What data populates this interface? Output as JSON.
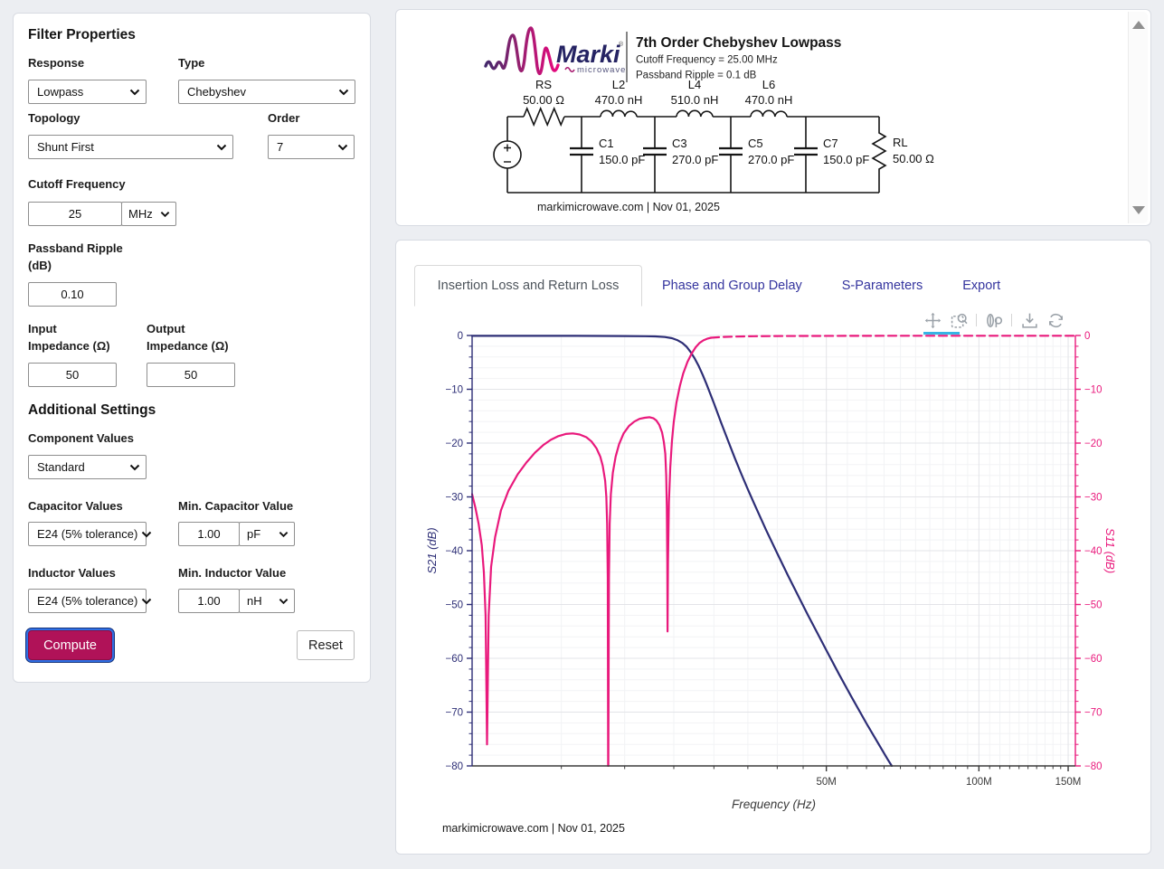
{
  "left_panel": {
    "title": "Filter Properties",
    "response": {
      "label": "Response",
      "value": "Lowpass"
    },
    "type": {
      "label": "Type",
      "value": "Chebyshev"
    },
    "topology": {
      "label": "Topology",
      "value": "Shunt First"
    },
    "order": {
      "label": "Order",
      "value": "7"
    },
    "cutoff_frequency": {
      "label": "Cutoff Frequency",
      "value": "25",
      "unit": "MHz"
    },
    "passband_ripple": {
      "label_line1": "Passband Ripple",
      "label_line2": "(dB)",
      "value": "0.10"
    },
    "input_impedance": {
      "label_line1": "Input",
      "label_line2": "Impedance (Ω)",
      "value": "50"
    },
    "output_impedance": {
      "label_line1": "Output",
      "label_line2": "Impedance (Ω)",
      "value": "50"
    },
    "additional_settings": {
      "title": "Additional Settings",
      "component_values": {
        "label": "Component Values",
        "value": "Standard"
      },
      "capacitor_values": {
        "label": "Capacitor Values",
        "value": "E24 (5% tolerance)"
      },
      "min_capacitor": {
        "label": "Min. Capacitor Value",
        "value": "1.00",
        "unit": "pF"
      },
      "inductor_values": {
        "label": "Inductor Values",
        "value": "E24 (5% tolerance)"
      },
      "min_inductor": {
        "label": "Min. Inductor Value",
        "value": "1.00",
        "unit": "nH"
      }
    },
    "compute_label": "Compute",
    "reset_label": "Reset"
  },
  "schematic": {
    "logo": {
      "brand": "Marki",
      "subbrand": "microwave"
    },
    "title": "7th Order Chebyshev Lowpass",
    "subtitle_line1": "Cutoff Frequency = 25.00 MHz",
    "subtitle_line2": "Passband Ripple = 0.1 dB",
    "components": {
      "rs": {
        "name": "RS",
        "value": "50.00 Ω"
      },
      "l2": {
        "name": "L2",
        "value": "470.0 nH"
      },
      "l4": {
        "name": "L4",
        "value": "510.0 nH"
      },
      "l6": {
        "name": "L6",
        "value": "470.0 nH"
      },
      "c1": {
        "name": "C1",
        "value": "150.0 pF"
      },
      "c3": {
        "name": "C3",
        "value": "270.0 pF"
      },
      "c5": {
        "name": "C5",
        "value": "270.0 pF"
      },
      "c7": {
        "name": "C7",
        "value": "150.0 pF"
      },
      "rl": {
        "name": "RL",
        "value": "50.00 Ω"
      }
    },
    "footer": "markimicrowave.com | Nov 01, 2025"
  },
  "results_panel": {
    "tabs": [
      {
        "label": "Insertion Loss and Return Loss",
        "active": true
      },
      {
        "label": "Phase and Group Delay",
        "active": false
      },
      {
        "label": "S-Parameters",
        "active": false
      },
      {
        "label": "Export",
        "active": false
      }
    ],
    "toolbar": {
      "tools": [
        "pan",
        "box-zoom",
        "hover",
        "save",
        "reset"
      ],
      "active_tool": "pan"
    },
    "footer": "markimicrowave.com | Nov 01, 2025"
  },
  "chart_data": {
    "type": "line",
    "title": "",
    "xlabel": "Frequency (Hz)",
    "x_scale": "log",
    "x_range_hz": [
      10000000,
      155000000
    ],
    "x_major_ticks": [
      {
        "value_hz": 50000000,
        "label": "50M"
      },
      {
        "value_hz": 100000000,
        "label": "100M"
      },
      {
        "value_hz": 150000000,
        "label": "150M"
      }
    ],
    "x_minor_step_hz": 5000000,
    "y_left_axis": {
      "label": "S21 (dB)",
      "range": [
        -80,
        0
      ],
      "major_step": 10,
      "minor_step": 2,
      "color": "#2D2E76"
    },
    "y_right_axis": {
      "label": "S11 (dB)",
      "range": [
        -80,
        0
      ],
      "major_step": 10,
      "minor_step": 2,
      "color": "#E9197C"
    },
    "grid": true,
    "legend": "none",
    "series": [
      {
        "name": "S21",
        "axis": "left",
        "color": "#2D2E76",
        "line_style": "solid",
        "points_mhz_db": [
          [
            10,
            -0.07
          ],
          [
            12,
            -0.07
          ],
          [
            14,
            -0.07
          ],
          [
            16,
            -0.07
          ],
          [
            18,
            -0.08
          ],
          [
            20,
            -0.1
          ],
          [
            22,
            -0.13
          ],
          [
            23,
            -0.17
          ],
          [
            24,
            -0.28
          ],
          [
            24.8,
            -0.5
          ],
          [
            25.4,
            -0.85
          ],
          [
            26,
            -1.4
          ],
          [
            26.5,
            -2.1
          ],
          [
            27,
            -3.1
          ],
          [
            27.5,
            -4.3
          ],
          [
            28,
            -5.7
          ],
          [
            28.5,
            -7.3
          ],
          [
            29,
            -9.0
          ],
          [
            30,
            -12.6
          ],
          [
            31,
            -16.2
          ],
          [
            32,
            -19.6
          ],
          [
            33,
            -22.8
          ],
          [
            34,
            -25.8
          ],
          [
            35,
            -28.6
          ],
          [
            36,
            -31.2
          ],
          [
            38,
            -36.1
          ],
          [
            40,
            -40.5
          ],
          [
            42,
            -44.6
          ],
          [
            44,
            -48.4
          ],
          [
            46,
            -52.0
          ],
          [
            48,
            -55.3
          ],
          [
            50,
            -58.5
          ],
          [
            53,
            -63.0
          ],
          [
            56,
            -67.1
          ],
          [
            60,
            -72.1
          ],
          [
            63,
            -75.5
          ],
          [
            66,
            -78.7
          ],
          [
            67.3,
            -80.0
          ]
        ]
      },
      {
        "name": "S11",
        "axis": "right",
        "color": "#E9197C",
        "line_style": "solid",
        "points_mhz_db": [
          [
            10,
            -29.5
          ],
          [
            10.15,
            -32
          ],
          [
            10.3,
            -35
          ],
          [
            10.45,
            -39
          ],
          [
            10.55,
            -44
          ],
          [
            10.63,
            -52
          ],
          [
            10.7,
            -76
          ],
          [
            10.78,
            -52
          ],
          [
            10.9,
            -43
          ],
          [
            11.1,
            -37.5
          ],
          [
            11.4,
            -32.5
          ],
          [
            11.8,
            -28.8
          ],
          [
            12.3,
            -25.8
          ],
          [
            12.8,
            -23.6
          ],
          [
            13.3,
            -21.8
          ],
          [
            13.8,
            -20.4
          ],
          [
            14.3,
            -19.4
          ],
          [
            14.8,
            -18.7
          ],
          [
            15.3,
            -18.3
          ],
          [
            15.8,
            -18.2
          ],
          [
            16.3,
            -18.4
          ],
          [
            16.8,
            -18.9
          ],
          [
            17.2,
            -19.7
          ],
          [
            17.6,
            -21.0
          ],
          [
            17.9,
            -22.5
          ],
          [
            18.1,
            -24.2
          ],
          [
            18.3,
            -27.0
          ],
          [
            18.4,
            -30.0
          ],
          [
            18.47,
            -35.0
          ],
          [
            18.52,
            -45.0
          ],
          [
            18.55,
            -80.0
          ],
          [
            18.57,
            -80.0
          ],
          [
            18.62,
            -45.0
          ],
          [
            18.68,
            -35.0
          ],
          [
            18.78,
            -29.5
          ],
          [
            18.95,
            -25.5
          ],
          [
            19.2,
            -22.5
          ],
          [
            19.5,
            -20.2
          ],
          [
            19.9,
            -18.2
          ],
          [
            20.4,
            -16.8
          ],
          [
            20.9,
            -16.0
          ],
          [
            21.4,
            -15.5
          ],
          [
            21.9,
            -15.3
          ],
          [
            22.4,
            -15.2
          ],
          [
            22.8,
            -15.4
          ],
          [
            23.1,
            -15.8
          ],
          [
            23.4,
            -16.6
          ],
          [
            23.7,
            -18.0
          ],
          [
            23.9,
            -19.8
          ],
          [
            24.05,
            -22.0
          ],
          [
            24.15,
            -26.0
          ],
          [
            24.22,
            -32.0
          ],
          [
            24.27,
            -42.0
          ],
          [
            24.3,
            -55.0
          ],
          [
            24.35,
            -42.0
          ],
          [
            24.45,
            -31.0
          ],
          [
            24.6,
            -24.5
          ],
          [
            24.8,
            -19.5
          ],
          [
            25,
            -16.0
          ],
          [
            25.3,
            -12.5
          ],
          [
            25.7,
            -9.4
          ],
          [
            26.1,
            -7.0
          ],
          [
            26.6,
            -4.9
          ],
          [
            27.1,
            -3.4
          ],
          [
            27.6,
            -2.2
          ],
          [
            28.1,
            -1.4
          ],
          [
            28.6,
            -0.9
          ],
          [
            29.1,
            -0.6
          ],
          [
            29.6,
            -0.42
          ]
        ]
      },
      {
        "name": "S11_stopband",
        "axis": "right",
        "color": "#E9197C",
        "line_style": "dashed",
        "points_mhz_db": [
          [
            29.6,
            -0.42
          ],
          [
            31,
            -0.28
          ],
          [
            33,
            -0.2
          ],
          [
            36,
            -0.14
          ],
          [
            40,
            -0.1
          ],
          [
            46,
            -0.08
          ],
          [
            55,
            -0.06
          ],
          [
            70,
            -0.05
          ],
          [
            90,
            -0.05
          ],
          [
            120,
            -0.05
          ],
          [
            155,
            -0.05
          ]
        ]
      }
    ]
  }
}
